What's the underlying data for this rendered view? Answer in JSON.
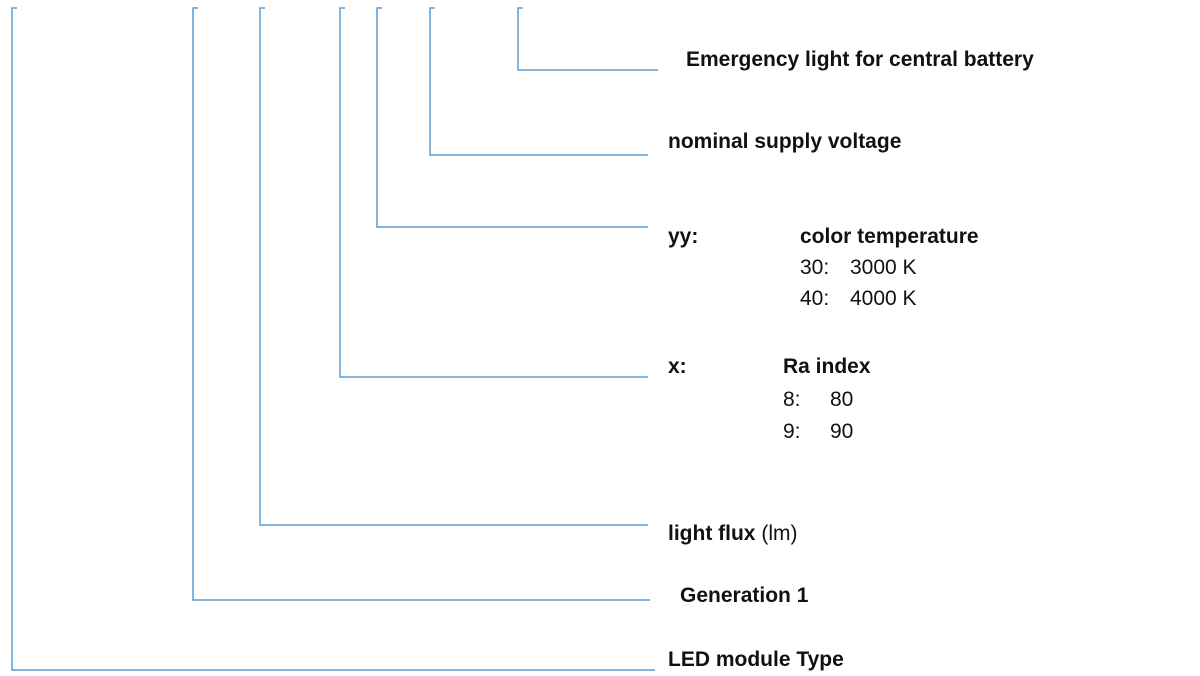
{
  "labels": [
    {
      "text": "Emergency light for central battery"
    },
    {
      "text": "nominal supply voltage"
    },
    {
      "code": "yy:",
      "text": "color temperature",
      "options": [
        [
          "30:",
          "3000 K"
        ],
        [
          "40:",
          "4000 K"
        ]
      ]
    },
    {
      "code": "x:",
      "text": "Ra index",
      "options": [
        [
          "8:",
          "80"
        ],
        [
          "9:",
          "90"
        ]
      ]
    },
    {
      "text": "light flux",
      "unit": "(lm)"
    },
    {
      "text": "Generation 1"
    },
    {
      "text": "LED module Type"
    }
  ]
}
